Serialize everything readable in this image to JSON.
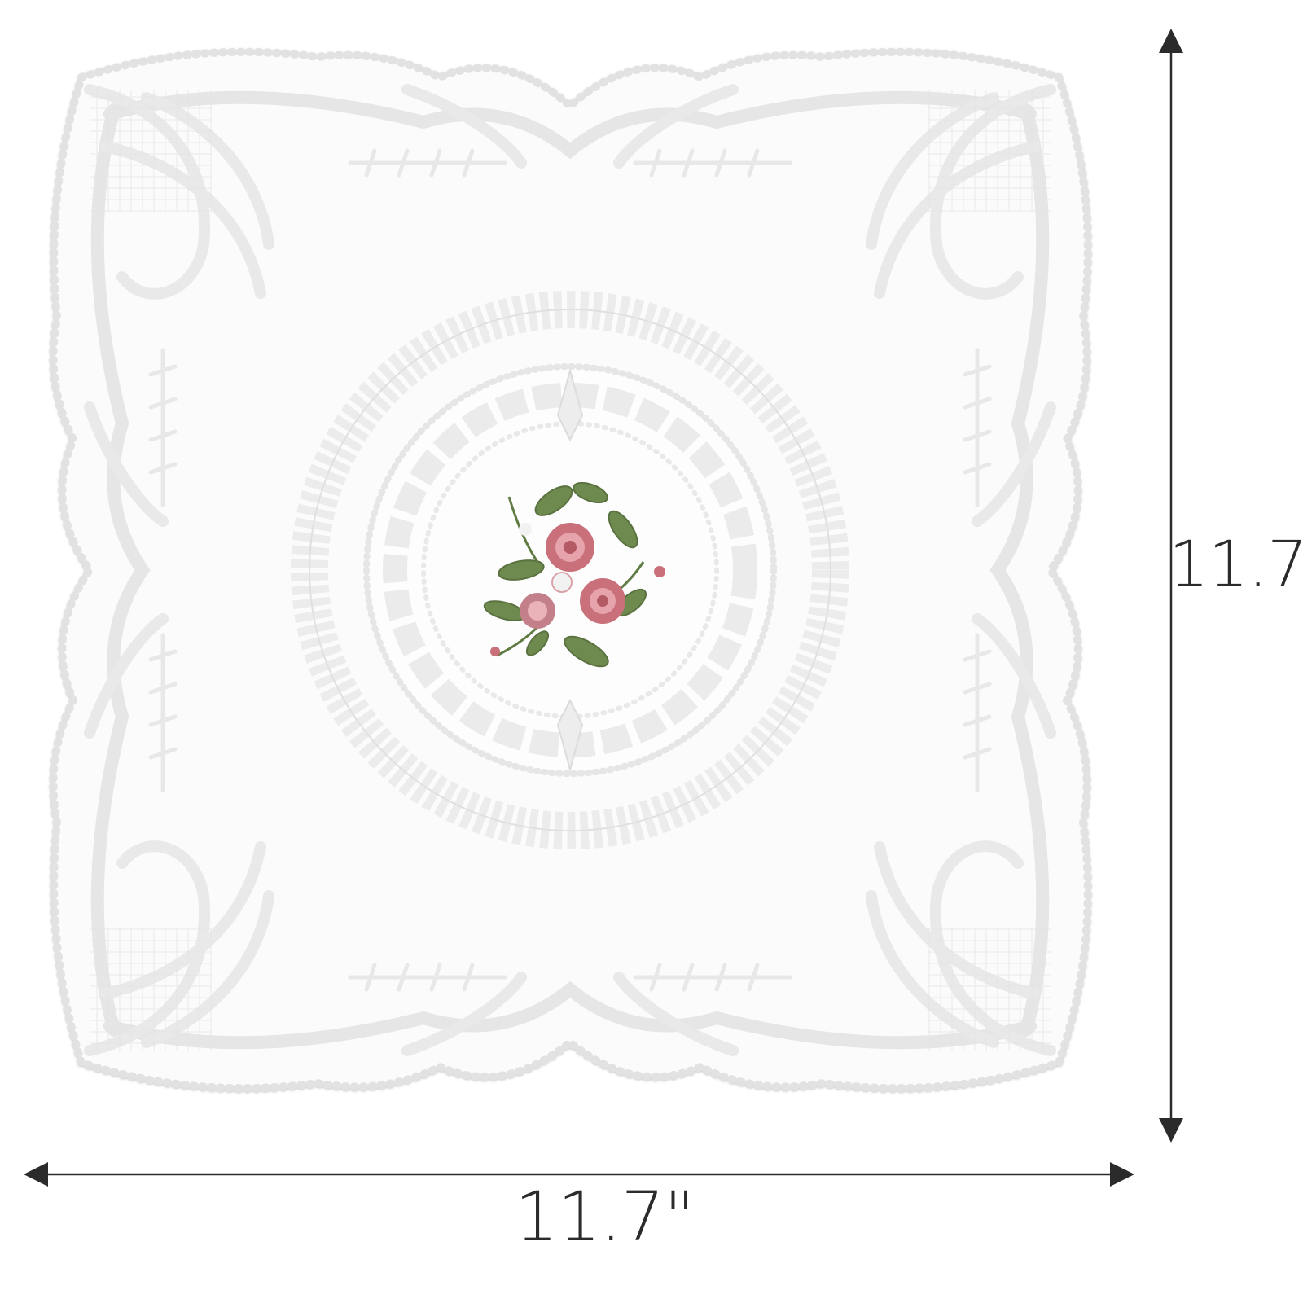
{
  "product": {
    "name": "embroidered-lace-doily",
    "lace_color": "#f0f0f0",
    "lace_shadow": "#d6d6d6",
    "flower_petal_color": "#c9707a",
    "flower_petal_light": "#e6a3ab",
    "leaf_color": "#6f8a4e"
  },
  "dimensions": {
    "width_label": "11.7\"",
    "height_label": "11.7\"",
    "arrow_color": "#2b2b2b"
  }
}
